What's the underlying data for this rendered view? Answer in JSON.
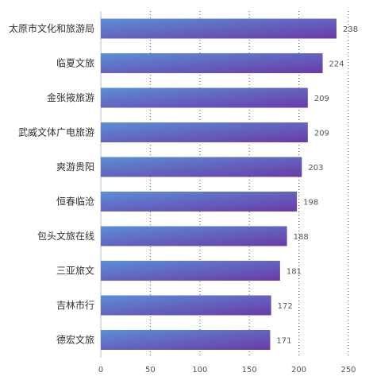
{
  "chart_data": {
    "type": "bar",
    "orientation": "horizontal",
    "categories": [
      "太原市文化和旅游局",
      "临夏文旅",
      "金张掖旅游",
      "武威文体广电旅游",
      "爽游贵阳",
      "恒春临沧",
      "包头文旅在线",
      "三亚旅文",
      "吉林市行",
      "德宏文旅"
    ],
    "values": [
      238,
      224,
      209,
      209,
      203,
      198,
      188,
      181,
      172,
      171
    ],
    "xlim": [
      0,
      250
    ],
    "xticks": [
      0,
      50,
      100,
      150,
      200,
      250
    ],
    "grid": true,
    "colors": {
      "bar_start": "#5b8fd6",
      "bar_end": "#6a3aa8"
    }
  }
}
